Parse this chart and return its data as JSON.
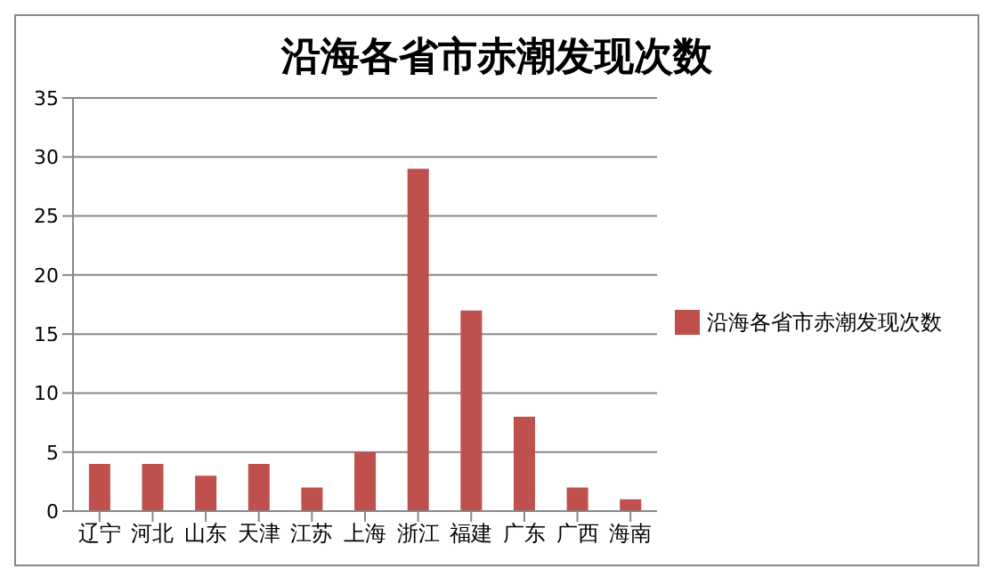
{
  "chart_data": {
    "type": "bar",
    "title": "沿海各省市赤潮发现次数",
    "categories": [
      "辽宁",
      "河北",
      "山东",
      "天津",
      "江苏",
      "上海",
      "浙江",
      "福建",
      "广东",
      "广西",
      "海南"
    ],
    "series": [
      {
        "name": "沿海各省市赤潮发现次数",
        "color": "#c0504d",
        "values": [
          4,
          4,
          3,
          4,
          2,
          5,
          29,
          17,
          8,
          2,
          1
        ]
      }
    ],
    "ylim": [
      0,
      35
    ],
    "yticks": [
      0,
      5,
      10,
      15,
      20,
      25,
      30,
      35
    ],
    "grid": "y",
    "legend": "right"
  }
}
